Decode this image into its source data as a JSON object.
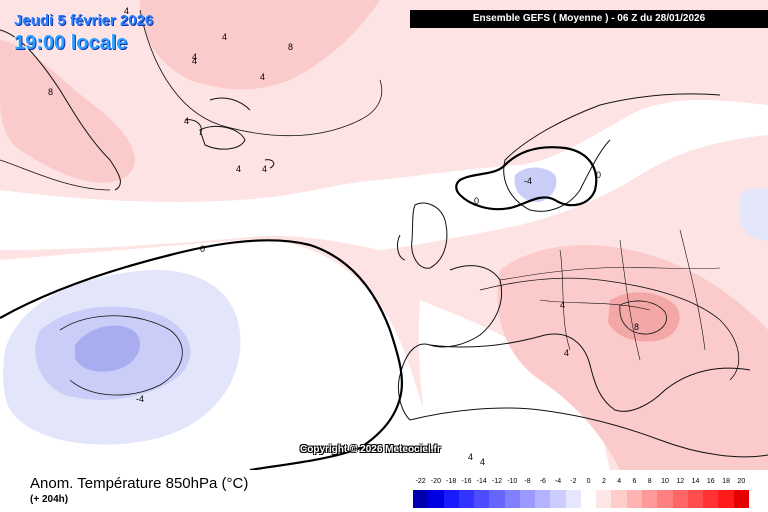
{
  "map": {
    "date_line": "Jeudi 5 février 2026",
    "time_line": "19:00 locale",
    "run_banner": "Ensemble GEFS  ( Moyenne )  - 06 Z du 28/01/2026",
    "copyright": "Copyright © 2026 Meteociel.fr",
    "contour_labels": [
      "4",
      "4",
      "4",
      "8",
      "4",
      "4",
      "8",
      "4",
      "4",
      "4",
      "0",
      "-4",
      "0",
      "0",
      "-4",
      "4",
      "4",
      "8",
      "4",
      "4"
    ],
    "colors": {
      "warm_1": "#fde3e3",
      "warm_2": "#fbcaca",
      "warm_3": "#f4a7a7",
      "cool_1": "#e3e6fb",
      "cool_2": "#c9cdf7",
      "cool_3": "#a8adf0",
      "zero_line": "#000000",
      "coast": "#111111"
    }
  },
  "footer": {
    "variable_title": "Anom. Température 850hPa (°C)",
    "lead_time": "(+ 204h)"
  },
  "legend": {
    "labels": [
      "-22",
      "-20",
      "-18",
      "-16",
      "-14",
      "-12",
      "-10",
      "-8",
      "-6",
      "-4",
      "-2",
      "0",
      "2",
      "4",
      "6",
      "8",
      "10",
      "12",
      "14",
      "16",
      "18",
      "20"
    ],
    "colors": [
      "#0000b0",
      "#0000e0",
      "#1a1aff",
      "#3333ff",
      "#4d4dff",
      "#6666ff",
      "#8080ff",
      "#9999ff",
      "#b3b3ff",
      "#ccccff",
      "#e6e6ff",
      "#ffffff",
      "#ffe6e6",
      "#ffcccc",
      "#ffb3b3",
      "#ff9999",
      "#ff8080",
      "#ff6666",
      "#ff4d4d",
      "#ff3333",
      "#ff1a1a",
      "#e60000"
    ]
  }
}
